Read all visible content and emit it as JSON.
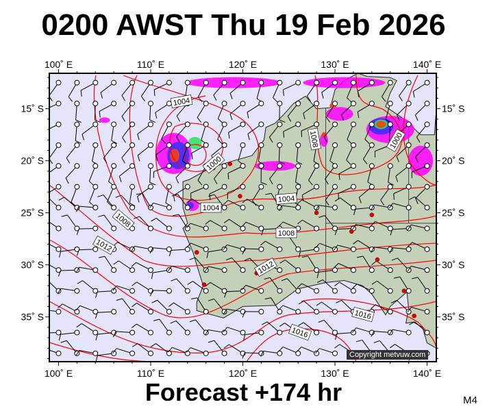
{
  "title": "0200 AWST Thu 19 Feb 2026",
  "footer": "Forecast +174 hr",
  "model_code": "M4",
  "copyright": "Copyright metvuw.com",
  "map": {
    "lon_range": [
      99,
      141
    ],
    "lat_range": [
      -39.3,
      -11.6
    ],
    "lon_ticks": [
      "100˚ E",
      "110˚ E",
      "120˚ E",
      "130˚ E",
      "140˚ E"
    ],
    "lat_ticks": [
      "15˚ S",
      "20˚ S",
      "25˚ S",
      "30˚ S",
      "35˚ S"
    ],
    "colors": {
      "ocean": "#e4e4fa",
      "land": "#c4d0b8",
      "isobar": "#ff0000",
      "rain_light": "#ff00ff",
      "rain_mid": "#3030ff",
      "rain_heavy": "#ff4000"
    },
    "isobar_labels": [
      "1004",
      "1000",
      "1004",
      "1008",
      "1012",
      "1004",
      "1008",
      "1012",
      "1016",
      "1016",
      "1008",
      "1000"
    ]
  }
}
